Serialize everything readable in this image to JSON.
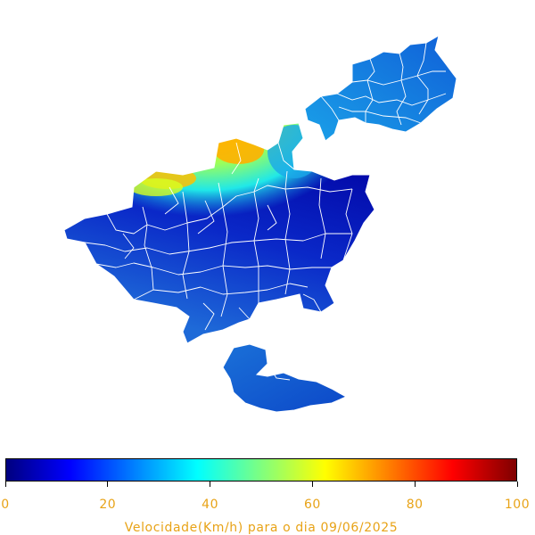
{
  "legend": {
    "caption": "Velocidade(Km/h) para o dia 09/06/2025",
    "ticks": [
      0,
      20,
      40,
      60,
      80,
      100
    ],
    "min": 0,
    "max": 100,
    "colormap": [
      "#00007f",
      "#0000ff",
      "#007fff",
      "#00ffff",
      "#7fff7f",
      "#ffff00",
      "#ff7f00",
      "#ff0000",
      "#7f0000"
    ]
  },
  "colors": {
    "border": "#ffffff",
    "label": "#e8a317"
  }
}
